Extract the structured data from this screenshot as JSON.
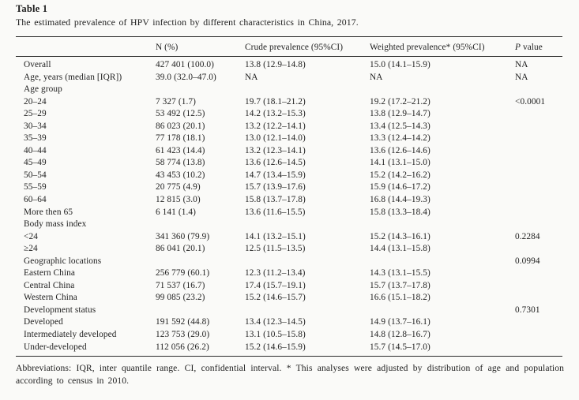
{
  "table": {
    "label": "Table 1",
    "caption": "The estimated prevalence of HPV infection by different characteristics in China, 2017.",
    "columns": [
      "",
      "N (%)",
      "Crude prevalence (95%CI)",
      "Weighted prevalence* (95%CI)",
      "P value"
    ],
    "rows": [
      {
        "label": "Overall",
        "n": "427 401 (100.0)",
        "crude": "13.8 (12.9–14.8)",
        "weighted": "15.0 (14.1–15.9)",
        "p": "NA"
      },
      {
        "label": "Age, years (median [IQR])",
        "n": "39.0 (32.0–47.0)",
        "crude": "NA",
        "weighted": "NA",
        "p": "NA"
      },
      {
        "label": "Age group",
        "n": "",
        "crude": "",
        "weighted": "",
        "p": ""
      },
      {
        "label": "20–24",
        "n": "7 327 (1.7)",
        "crude": "19.7 (18.1–21.2)",
        "weighted": "19.2 (17.2–21.2)",
        "p": "<0.0001"
      },
      {
        "label": "25–29",
        "n": "53 492 (12.5)",
        "crude": "14.2 (13.2–15.3)",
        "weighted": "13.8 (12.9–14.7)",
        "p": ""
      },
      {
        "label": "30–34",
        "n": "86 023 (20.1)",
        "crude": "13.2 (12.2–14.1)",
        "weighted": "13.4 (12.5–14.3)",
        "p": ""
      },
      {
        "label": "35–39",
        "n": "77 178 (18.1)",
        "crude": "13.0 (12.1–14.0)",
        "weighted": "13.3 (12.4–14.2)",
        "p": ""
      },
      {
        "label": "40–44",
        "n": "61 423 (14.4)",
        "crude": "13.2 (12.3–14.1)",
        "weighted": "13.6 (12.6–14.6)",
        "p": ""
      },
      {
        "label": "45–49",
        "n": "58 774 (13.8)",
        "crude": "13.6 (12.6–14.5)",
        "weighted": "14.1 (13.1–15.0)",
        "p": ""
      },
      {
        "label": "50–54",
        "n": "43 453 (10.2)",
        "crude": "14.7 (13.4–15.9)",
        "weighted": "15.2 (14.2–16.2)",
        "p": ""
      },
      {
        "label": "55–59",
        "n": "20 775 (4.9)",
        "crude": "15.7 (13.9–17.6)",
        "weighted": "15.9 (14.6–17.2)",
        "p": ""
      },
      {
        "label": "60–64",
        "n": "12 815 (3.0)",
        "crude": "15.8 (13.7–17.8)",
        "weighted": "16.8 (14.4–19.3)",
        "p": ""
      },
      {
        "label": "More then 65",
        "n": "6 141 (1.4)",
        "crude": "13.6 (11.6–15.5)",
        "weighted": "15.8 (13.3–18.4)",
        "p": ""
      },
      {
        "label": "Body mass index",
        "n": "",
        "crude": "",
        "weighted": "",
        "p": ""
      },
      {
        "label": "<24",
        "n": "341 360 (79.9)",
        "crude": "14.1 (13.2–15.1)",
        "weighted": "15.2 (14.3–16.1)",
        "p": "0.2284"
      },
      {
        "label": "≥24",
        "n": "86 041 (20.1)",
        "crude": "12.5 (11.5–13.5)",
        "weighted": "14.4 (13.1–15.8)",
        "p": ""
      },
      {
        "label": "Geographic locations",
        "n": "",
        "crude": "",
        "weighted": "",
        "p": "0.0994"
      },
      {
        "label": "Eastern China",
        "n": "256 779 (60.1)",
        "crude": "12.3 (11.2–13.4)",
        "weighted": "14.3 (13.1–15.5)",
        "p": ""
      },
      {
        "label": "Central China",
        "n": "71 537 (16.7)",
        "crude": "17.4 (15.7–19.1)",
        "weighted": "15.7 (13.7–17.8)",
        "p": ""
      },
      {
        "label": "Western China",
        "n": "99 085 (23.2)",
        "crude": "15.2 (14.6–15.7)",
        "weighted": "16.6 (15.1–18.2)",
        "p": ""
      },
      {
        "label": "Development status",
        "n": "",
        "crude": "",
        "weighted": "",
        "p": "0.7301"
      },
      {
        "label": "Developed",
        "n": "191 592 (44.8)",
        "crude": "13.4 (12.3–14.5)",
        "weighted": "14.9 (13.7–16.1)",
        "p": ""
      },
      {
        "label": "Intermediately developed",
        "n": "123 753 (29.0)",
        "crude": "13.1 (10.5–15.8)",
        "weighted": "14.8 (12.8–16.7)",
        "p": ""
      },
      {
        "label": "Under-developed",
        "n": "112 056 (26.2)",
        "crude": "15.2 (14.6–15.9)",
        "weighted": "15.7 (14.5–17.0)",
        "p": ""
      }
    ],
    "footnote": "Abbreviations: IQR, inter quantile range. CI, confidential interval. * This analyses were adjusted by distribution of age and population according to census in 2010."
  },
  "colors": {
    "text": "#1e1e1e",
    "rule": "#2b2b2b",
    "background": "#fafaf8"
  }
}
